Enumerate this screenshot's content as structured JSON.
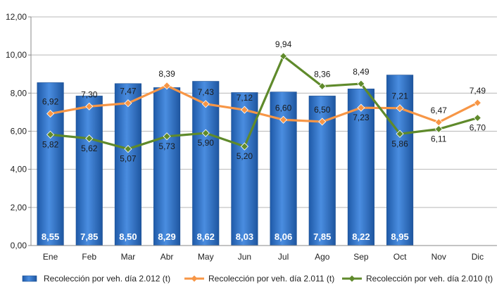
{
  "chart_data": {
    "type": "bar",
    "categories": [
      "Ene",
      "Feb",
      "Mar",
      "Abr",
      "May",
      "Jun",
      "Jul",
      "Ago",
      "Sep",
      "Oct",
      "Nov",
      "Dic"
    ],
    "ylim": [
      0,
      12
    ],
    "yticks": [
      "0,00",
      "2,00",
      "4,00",
      "6,00",
      "8,00",
      "10,00",
      "12,00"
    ],
    "grid": true,
    "legend_position": "bottom",
    "series": [
      {
        "name": "Recolección por veh. día 2.012 (t)",
        "kind": "bar",
        "color": "#2f73c9",
        "values": [
          8.55,
          7.85,
          8.5,
          8.29,
          8.62,
          8.03,
          8.06,
          7.85,
          8.22,
          8.95,
          null,
          null
        ],
        "labels": [
          "8,55",
          "7,85",
          "8,50",
          "8,29",
          "8,62",
          "8,03",
          "8,06",
          "7,85",
          "8,22",
          "8,95",
          "",
          ""
        ]
      },
      {
        "name": "Recolección por veh. día 2.011 (t)",
        "kind": "line",
        "color": "#f79646",
        "values": [
          6.92,
          7.3,
          7.47,
          8.39,
          7.43,
          7.12,
          6.6,
          6.5,
          7.23,
          7.21,
          6.47,
          7.49
        ],
        "labels": [
          "6,92",
          "7,30",
          "7,47",
          "8,39",
          "7,43",
          "7,12",
          "6,60",
          "6,50",
          "7,23",
          "7,21",
          "6,47",
          "7,49"
        ]
      },
      {
        "name": "Recolección por veh. día 2.010 (t)",
        "kind": "line",
        "color": "#5f8a2b",
        "values": [
          5.82,
          5.62,
          5.07,
          5.73,
          5.9,
          5.2,
          9.94,
          8.36,
          8.49,
          5.86,
          6.11,
          6.7
        ],
        "labels": [
          "5,82",
          "5,62",
          "5,07",
          "5,73",
          "5,90",
          "5,20",
          "9,94",
          "8,36",
          "8,49",
          "5,86",
          "6,11",
          "6,70"
        ]
      }
    ]
  }
}
